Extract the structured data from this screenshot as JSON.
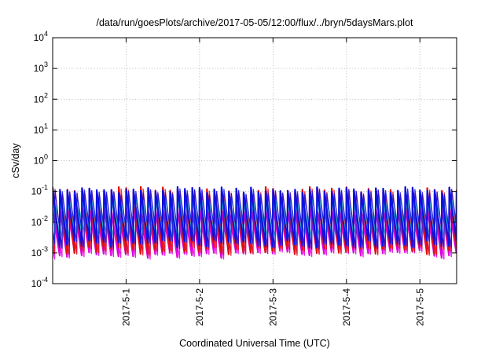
{
  "chart_data": {
    "type": "line",
    "title": "/data/run/goesPlots/archive/2017-05-05/12:00/flux/../bryn/5daysMars.plot",
    "xlabel": "Coordinated Universal Time (UTC)",
    "ylabel": "cSv/day",
    "yscale": "log",
    "ylim": [
      0.0001,
      10000
    ],
    "y_ticks": [
      {
        "base": "10",
        "exp": "4"
      },
      {
        "base": "10",
        "exp": "3"
      },
      {
        "base": "10",
        "exp": "2"
      },
      {
        "base": "10",
        "exp": "1"
      },
      {
        "base": "10",
        "exp": "0"
      },
      {
        "base": "10",
        "exp": "-1"
      },
      {
        "base": "10",
        "exp": "-2"
      },
      {
        "base": "10",
        "exp": "-3"
      },
      {
        "base": "10",
        "exp": "-4"
      }
    ],
    "xlim": [
      "2017-04-30 00:00",
      "2017-05-05 12:00"
    ],
    "x_ticks": [
      "2017-5-1",
      "2017-5-2",
      "2017-5-3",
      "2017-5-4",
      "2017-5-5"
    ],
    "grid": true,
    "sawtooth_period_hours": 2.4,
    "series": [
      {
        "color": "#e01010",
        "peak": 0.11,
        "trough": 0.0012
      },
      {
        "color": "#1010e0",
        "peak": 0.11,
        "trough": 0.002
      },
      {
        "color": "#10c0c0",
        "peak": 0.06,
        "trough": 0.004
      },
      {
        "color": "#e000e0",
        "peak": 0.03,
        "trough": 0.0009
      }
    ]
  }
}
